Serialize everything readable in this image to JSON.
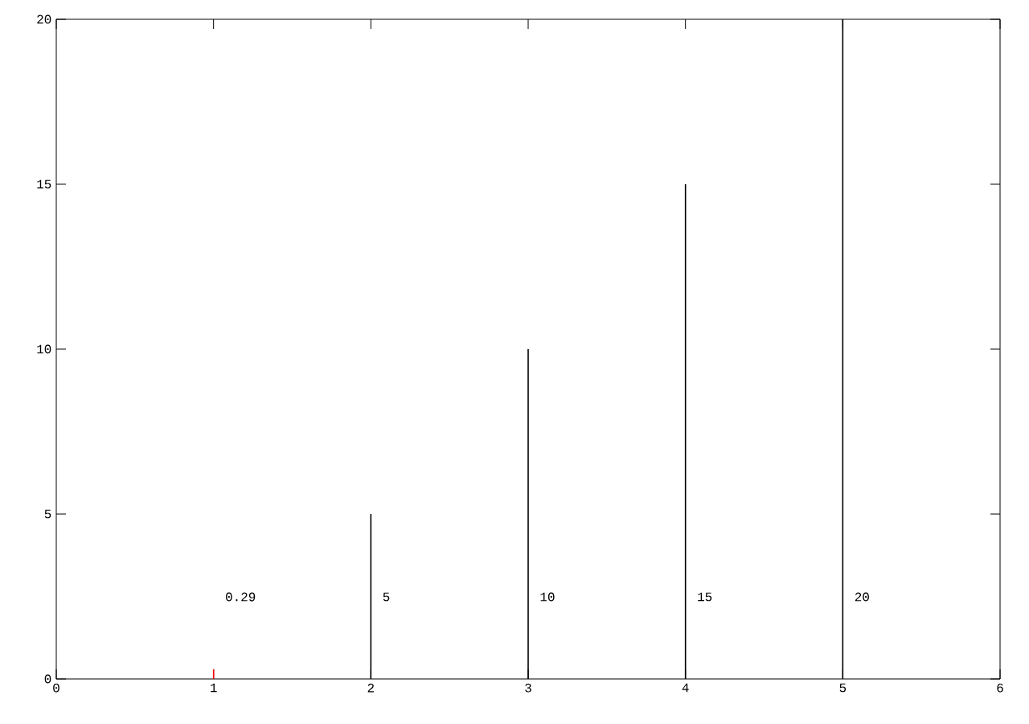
{
  "chart_data": {
    "type": "bar",
    "x": [
      1,
      2,
      3,
      4,
      5
    ],
    "values": [
      0.29,
      5,
      10,
      15,
      20
    ],
    "colors": [
      "#ff0000",
      "#000000",
      "#000000",
      "#000000",
      "#000000"
    ],
    "annotations": [
      "0.29",
      "5",
      "10",
      "15",
      "20"
    ],
    "xlim": [
      0,
      6
    ],
    "xticks": [
      0,
      1,
      2,
      3,
      4,
      5,
      6
    ],
    "ylim": [
      0,
      20
    ],
    "yticks": [
      0,
      5,
      10,
      15,
      20
    ]
  }
}
